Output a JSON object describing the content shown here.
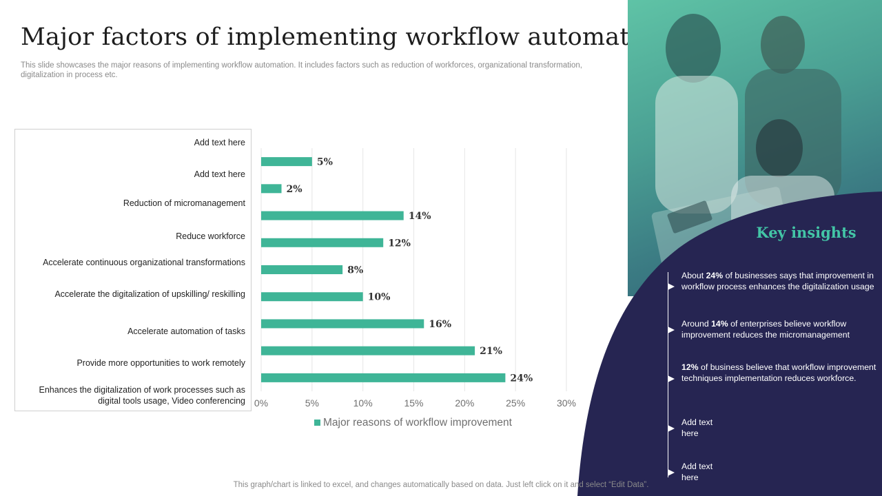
{
  "page": {
    "title": "Major factors of implementing workflow automation",
    "subtitle": "This slide showcases the major reasons of implementing workflow automation. It includes factors such as reduction of workforces, organizational transformation, digitalization in process etc.",
    "footer": "This graph/chart is linked to excel,  and changes automatically based on data. Just left click on it and select “Edit Data”."
  },
  "chart_data": {
    "type": "bar",
    "orientation": "horizontal",
    "categories": [
      "Add text here",
      "Add text here",
      "Reduction of micromanagement",
      "Reduce workforce",
      "Accelerate continuous organizational transformations",
      "Accelerate the digitalization of upskilling/ reskilling",
      "Accelerate automation of tasks",
      "Provide  more opportunities to work remotely",
      "Enhances the digitalization of work processes such as digital tools usage,  Video conferencing"
    ],
    "series": [
      {
        "name": "Major reasons of workflow improvement",
        "values": [
          5,
          2,
          14,
          12,
          8,
          10,
          16,
          21,
          24
        ],
        "value_labels": [
          "5%",
          "2%",
          "14%",
          "12%",
          "8%",
          "10%",
          "16%",
          "21%",
          "24%"
        ]
      }
    ],
    "xlim": [
      0,
      30
    ],
    "x_ticks": [
      0,
      5,
      10,
      15,
      20,
      25,
      30
    ],
    "x_tick_labels": [
      "0%",
      "5%",
      "10%",
      "15%",
      "20%",
      "25%",
      "30%"
    ],
    "grid": true,
    "legend_position": "bottom",
    "bar_color": "#3fb597"
  },
  "labels": [
    "Add text here",
    "Add text here",
    "Reduction of micromanagement",
    "Reduce workforce",
    "Accelerate continuous organizational transformations",
    "Accelerate the digitalization of upskilling/ reskilling",
    "Accelerate automation of tasks",
    "Provide  more opportunities to work remotely",
    "Enhances the digitalization of work processes such as digital tools usage,  Video conferencing"
  ],
  "insights": {
    "title": "Key insights",
    "items": [
      {
        "pre": "About ",
        "bold": "24%",
        "post": " of businesses says that improvement  in workflow  process enhances the digitalization usage"
      },
      {
        "pre": "Around ",
        "bold": "14%",
        "post": " of enterprises believe  workflow improvement  reduces the micromanagement"
      },
      {
        "pre": "",
        "bold": "12%",
        "post": " of business believe  that workflow improvement  techniques implementation reduces workforce."
      },
      {
        "pre": "Add text here",
        "bold": "",
        "post": ""
      },
      {
        "pre": "Add text here",
        "bold": "",
        "post": ""
      }
    ]
  },
  "colors": {
    "panel": "#262552",
    "accent": "#43c5a6",
    "bar": "#3fb597"
  }
}
